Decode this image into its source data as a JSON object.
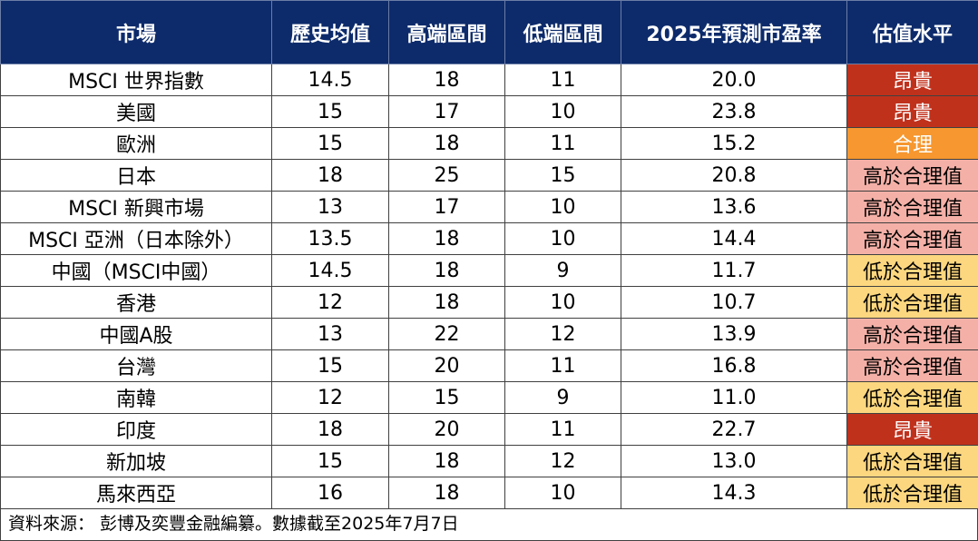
{
  "headers": {
    "market": "市場",
    "hist_avg": "歷史均值",
    "high": "高端區間",
    "low": "低端區間",
    "pe_2025": "2025年預測市盈率",
    "valuation": "估值水平"
  },
  "colors": {
    "header_bg": "#0d2b6b",
    "expensive": "#c0311c",
    "fair": "#f6972f",
    "above_fair": "#f4b0a7",
    "below_fair": "#fcd77f"
  },
  "rows": [
    {
      "market": "MSCI 世界指數",
      "hist_avg": "14.5",
      "high": "18",
      "low": "11",
      "pe_2025": "20.0",
      "valuation": "昂貴",
      "level": "expensive"
    },
    {
      "market": "美國",
      "hist_avg": "15",
      "high": "17",
      "low": "10",
      "pe_2025": "23.8",
      "valuation": "昂貴",
      "level": "expensive"
    },
    {
      "market": "歐洲",
      "hist_avg": "15",
      "high": "18",
      "low": "11",
      "pe_2025": "15.2",
      "valuation": "合理",
      "level": "fair"
    },
    {
      "market": "日本",
      "hist_avg": "18",
      "high": "25",
      "low": "15",
      "pe_2025": "20.8",
      "valuation": "高於合理值",
      "level": "above"
    },
    {
      "market": "MSCI 新興市場",
      "hist_avg": "13",
      "high": "17",
      "low": "10",
      "pe_2025": "13.6",
      "valuation": "高於合理值",
      "level": "above"
    },
    {
      "market": "MSCI 亞洲（日本除外）",
      "hist_avg": "13.5",
      "high": "18",
      "low": "10",
      "pe_2025": "14.4",
      "valuation": "高於合理值",
      "level": "above"
    },
    {
      "market": "中國（MSCI中國）",
      "hist_avg": "14.5",
      "high": "18",
      "low": "9",
      "pe_2025": "11.7",
      "valuation": "低於合理值",
      "level": "below"
    },
    {
      "market": "香港",
      "hist_avg": "12",
      "high": "18",
      "low": "10",
      "pe_2025": "10.7",
      "valuation": "低於合理值",
      "level": "below"
    },
    {
      "market": "中國A股",
      "hist_avg": "13",
      "high": "22",
      "low": "12",
      "pe_2025": "13.9",
      "valuation": "高於合理值",
      "level": "above"
    },
    {
      "market": "台灣",
      "hist_avg": "15",
      "high": "20",
      "low": "11",
      "pe_2025": "16.8",
      "valuation": "高於合理值",
      "level": "above"
    },
    {
      "market": "南韓",
      "hist_avg": "12",
      "high": "15",
      "low": "9",
      "pe_2025": "11.0",
      "valuation": "低於合理值",
      "level": "below"
    },
    {
      "market": "印度",
      "hist_avg": "18",
      "high": "20",
      "low": "11",
      "pe_2025": "22.7",
      "valuation": "昂貴",
      "level": "expensive"
    },
    {
      "market": "新加坡",
      "hist_avg": "15",
      "high": "18",
      "low": "12",
      "pe_2025": "13.0",
      "valuation": "低於合理值",
      "level": "below"
    },
    {
      "market": "馬來西亞",
      "hist_avg": "16",
      "high": "18",
      "low": "10",
      "pe_2025": "14.3",
      "valuation": "低於合理值",
      "level": "below"
    }
  ],
  "footer": {
    "source": "資料來源： 彭博及奕豐金融編纂。數據截至2025年7月7日"
  }
}
